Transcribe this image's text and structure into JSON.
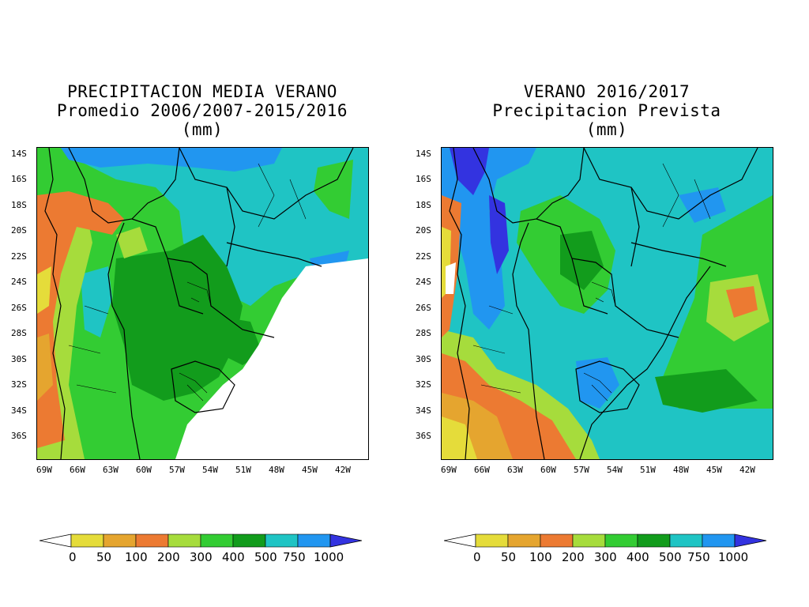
{
  "panels": [
    {
      "id": "left",
      "title": [
        "PRECIPITACION MEDIA VERANO",
        "Promedio 2006/2007-2015/2016",
        "(mm)"
      ]
    },
    {
      "id": "right",
      "title": [
        "VERANO 2016/2017",
        "Precipitacion Prevista",
        "(mm)"
      ]
    }
  ],
  "lat_labels": [
    "14S",
    "16S",
    "18S",
    "20S",
    "22S",
    "24S",
    "26S",
    "28S",
    "30S",
    "32S",
    "34S",
    "36S"
  ],
  "lon_labels": [
    "69W",
    "66W",
    "63W",
    "60W",
    "57W",
    "54W",
    "51W",
    "48W",
    "45W",
    "42W"
  ],
  "colorbar": {
    "labels": [
      "0",
      "50",
      "100",
      "200",
      "300",
      "400",
      "500",
      "750",
      "1000"
    ],
    "colors": [
      "#ffffff",
      "#e5dc3a",
      "#e5a52f",
      "#ec7a32",
      "#a6dc3c",
      "#33cc33",
      "#129c1c",
      "#1fc4c4",
      "#2196f0",
      "#3333e0"
    ]
  }
}
